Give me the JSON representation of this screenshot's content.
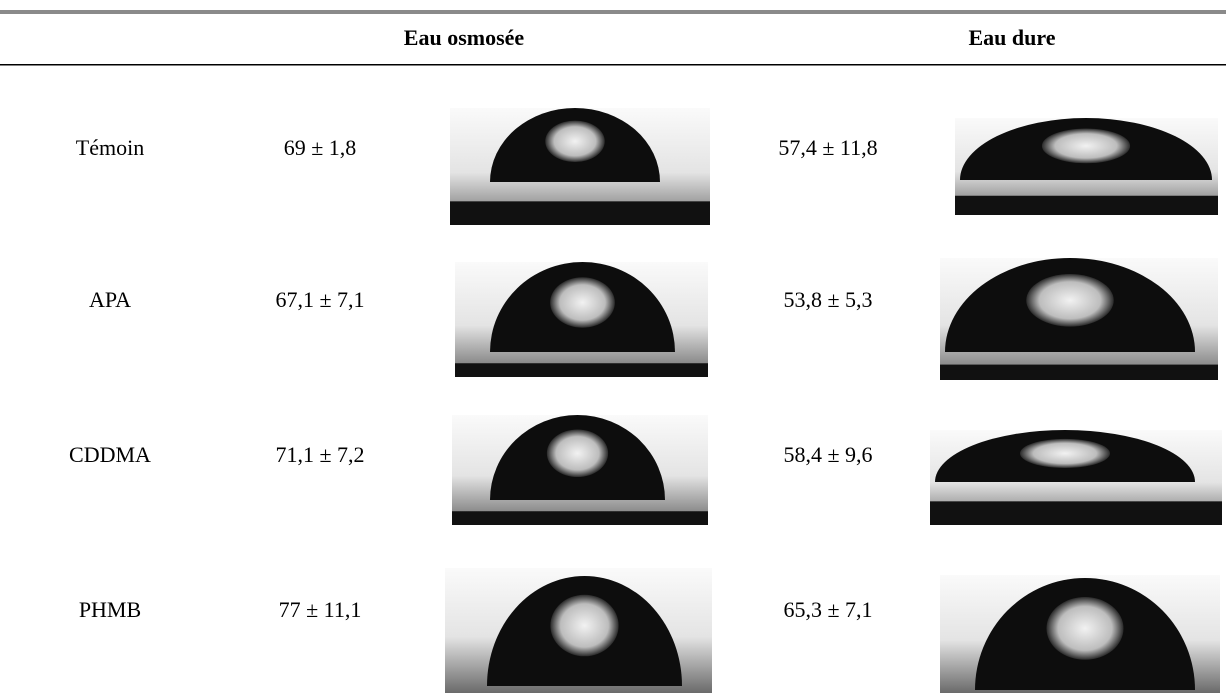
{
  "header": {
    "columns": [
      "Eau osmosée",
      "Eau dure"
    ]
  },
  "table": {
    "rows": [
      [
        "Témoin",
        "69 ± 1,8",
        "57,4 ± 11,8"
      ],
      [
        "APA",
        "67,1 ± 7,1",
        "53,8 ± 5,3"
      ],
      [
        "CDDMA",
        "71,1 ± 7,2",
        "58,4 ± 9,6"
      ],
      [
        "PHMB",
        "77 ± 11,1",
        "65,3 ± 7,1"
      ]
    ]
  }
}
